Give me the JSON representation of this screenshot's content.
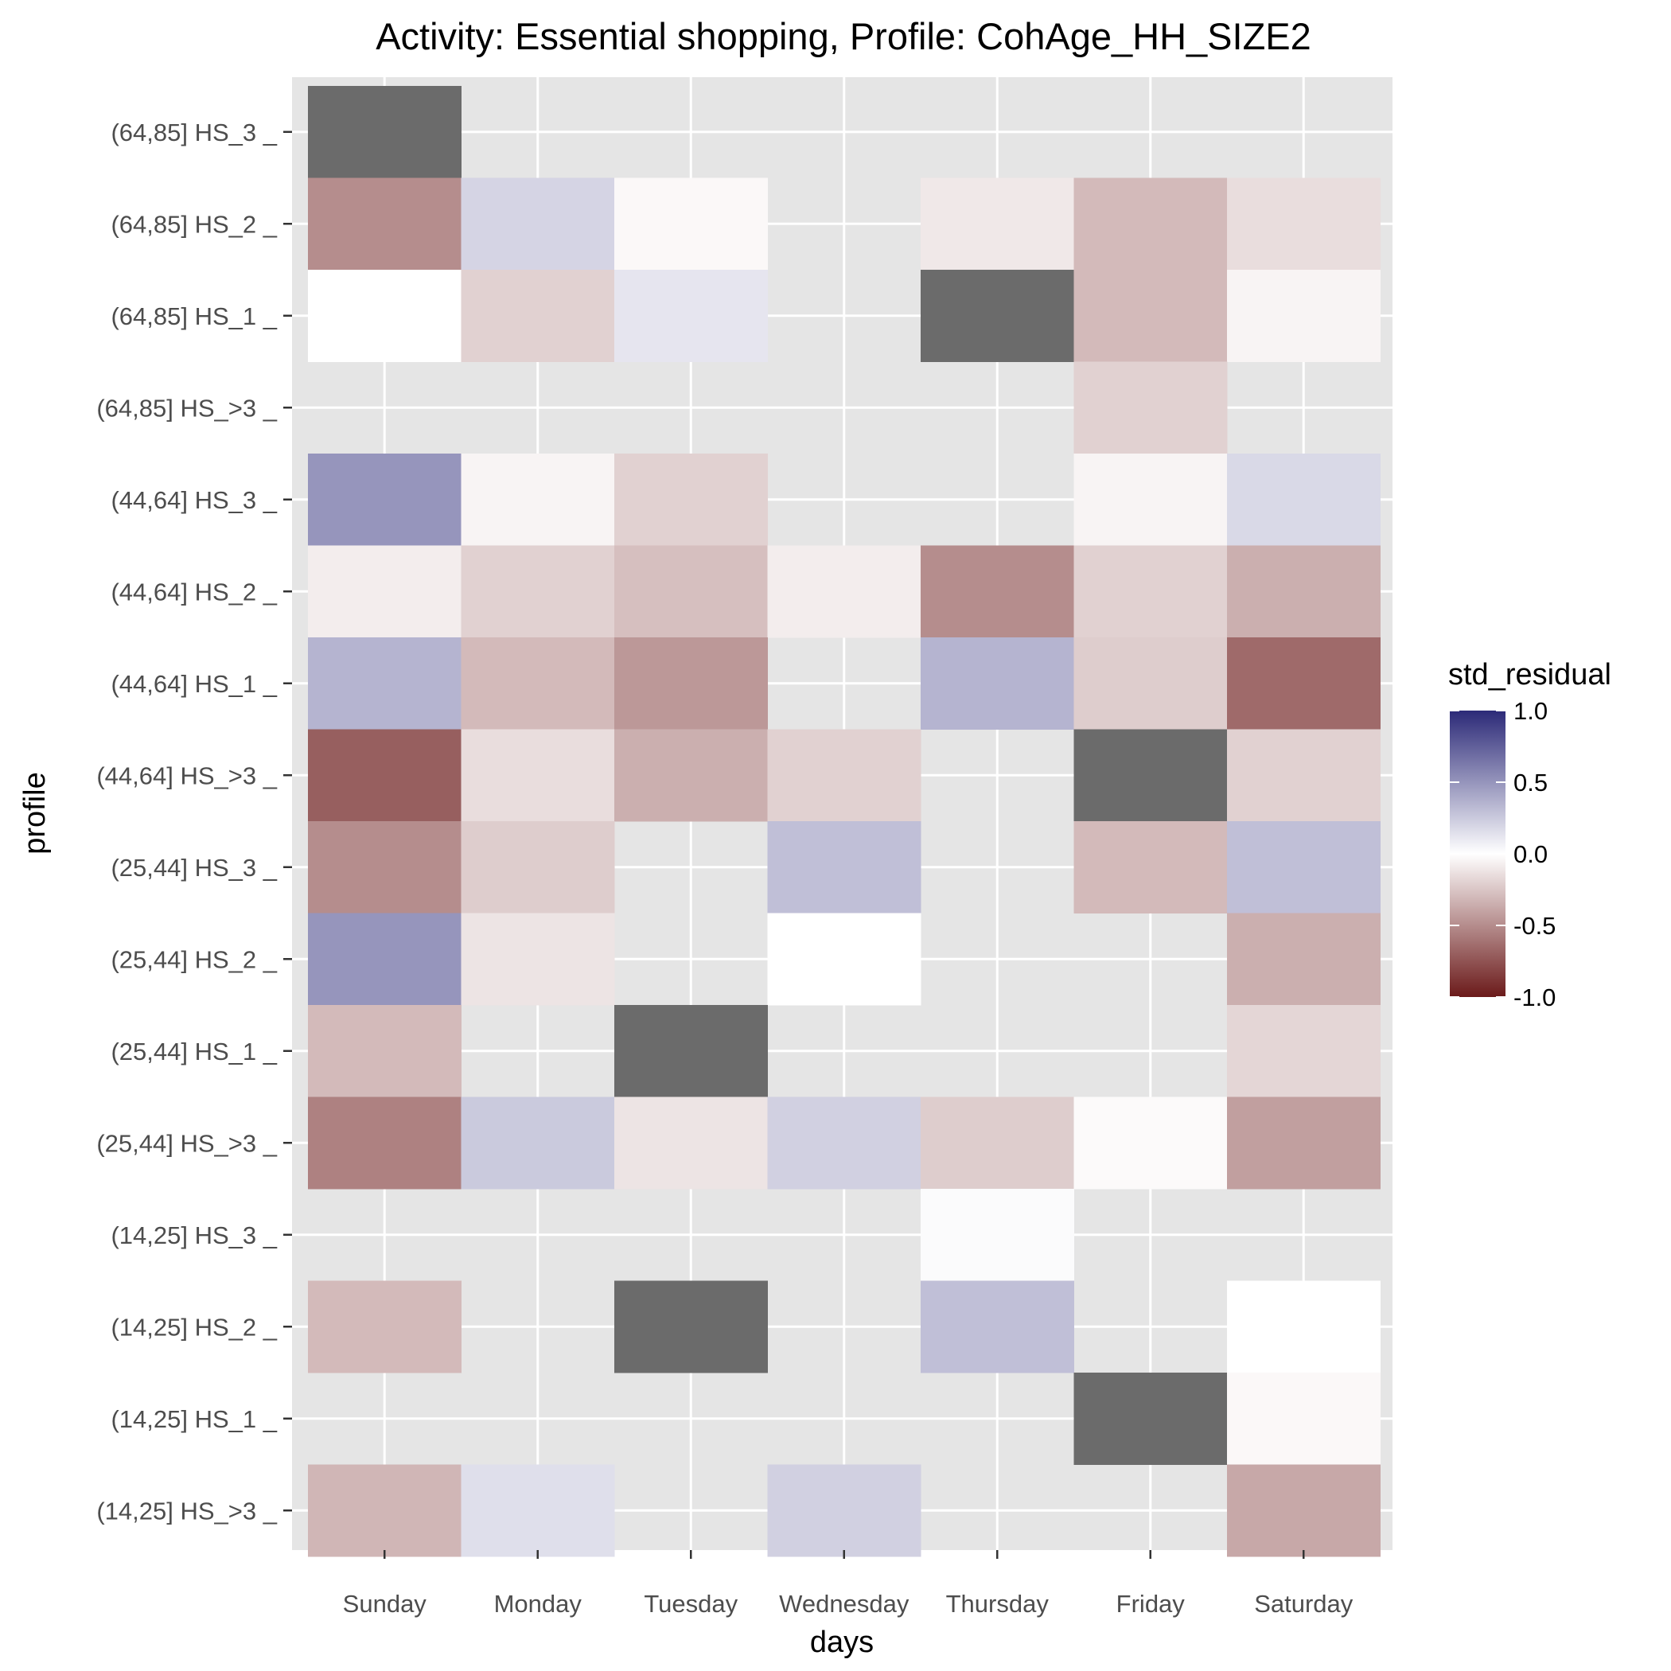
{
  "chart_data": {
    "type": "heatmap",
    "title": "Activity: Essential shopping, Profile: CohAge_HH_SIZE2",
    "xlabel": "days",
    "ylabel": "profile",
    "categories_x": [
      "Sunday",
      "Monday",
      "Tuesday",
      "Wednesday",
      "Thursday",
      "Friday",
      "Saturday"
    ],
    "categories_y": [
      "(64,85] HS_3 _",
      "(64,85] HS_2 _",
      "(64,85] HS_1 _",
      "(64,85] HS_>3 _",
      "(44,64] HS_3 _",
      "(44,64] HS_2 _",
      "(44,64] HS_1 _",
      "(44,64] HS_>3 _",
      "(25,44] HS_3 _",
      "(25,44] HS_2 _",
      "(25,44] HS_1 _",
      "(25,44] HS_>3 _",
      "(14,25] HS_3 _",
      "(14,25] HS_2 _",
      "(14,25] HS_1 _",
      "(14,25] HS_>3 _"
    ],
    "cells": [
      {
        "profile": "(64,85] HS_3 _",
        "day": "Sunday",
        "value": "NA"
      },
      {
        "profile": "(64,85] HS_2 _",
        "day": "Sunday",
        "value": -0.5
      },
      {
        "profile": "(64,85] HS_2 _",
        "day": "Monday",
        "value": 0.2
      },
      {
        "profile": "(64,85] HS_2 _",
        "day": "Tuesday",
        "value": -0.03
      },
      {
        "profile": "(64,85] HS_2 _",
        "day": "Thursday",
        "value": -0.1
      },
      {
        "profile": "(64,85] HS_2 _",
        "day": "Friday",
        "value": -0.3
      },
      {
        "profile": "(64,85] HS_2 _",
        "day": "Saturday",
        "value": -0.15
      },
      {
        "profile": "(64,85] HS_1 _",
        "day": "Sunday",
        "value": 0.0
      },
      {
        "profile": "(64,85] HS_1 _",
        "day": "Monday",
        "value": -0.2
      },
      {
        "profile": "(64,85] HS_1 _",
        "day": "Tuesday",
        "value": 0.12
      },
      {
        "profile": "(64,85] HS_1 _",
        "day": "Thursday",
        "value": "NA"
      },
      {
        "profile": "(64,85] HS_1 _",
        "day": "Friday",
        "value": -0.3
      },
      {
        "profile": "(64,85] HS_1 _",
        "day": "Saturday",
        "value": -0.05
      },
      {
        "profile": "(64,85] HS_>3 _",
        "day": "Friday",
        "value": -0.2
      },
      {
        "profile": "(44,64] HS_3 _",
        "day": "Sunday",
        "value": 0.5
      },
      {
        "profile": "(44,64] HS_3 _",
        "day": "Monday",
        "value": -0.05
      },
      {
        "profile": "(44,64] HS_3 _",
        "day": "Tuesday",
        "value": -0.2
      },
      {
        "profile": "(44,64] HS_3 _",
        "day": "Friday",
        "value": -0.05
      },
      {
        "profile": "(44,64] HS_3 _",
        "day": "Saturday",
        "value": 0.18
      },
      {
        "profile": "(44,64] HS_2 _",
        "day": "Sunday",
        "value": -0.08
      },
      {
        "profile": "(44,64] HS_2 _",
        "day": "Monday",
        "value": -0.2
      },
      {
        "profile": "(44,64] HS_2 _",
        "day": "Tuesday",
        "value": -0.28
      },
      {
        "profile": "(44,64] HS_2 _",
        "day": "Wednesday",
        "value": -0.08
      },
      {
        "profile": "(44,64] HS_2 _",
        "day": "Thursday",
        "value": -0.5
      },
      {
        "profile": "(44,64] HS_2 _",
        "day": "Friday",
        "value": -0.2
      },
      {
        "profile": "(44,64] HS_2 _",
        "day": "Saturday",
        "value": -0.35
      },
      {
        "profile": "(44,64] HS_1 _",
        "day": "Sunday",
        "value": 0.35
      },
      {
        "profile": "(44,64] HS_1 _",
        "day": "Monday",
        "value": -0.3
      },
      {
        "profile": "(44,64] HS_1 _",
        "day": "Tuesday",
        "value": -0.45
      },
      {
        "profile": "(44,64] HS_1 _",
        "day": "Thursday",
        "value": 0.35
      },
      {
        "profile": "(44,64] HS_1 _",
        "day": "Friday",
        "value": -0.22
      },
      {
        "profile": "(44,64] HS_1 _",
        "day": "Saturday",
        "value": -0.65
      },
      {
        "profile": "(44,64] HS_>3 _",
        "day": "Sunday",
        "value": -0.7
      },
      {
        "profile": "(44,64] HS_>3 _",
        "day": "Monday",
        "value": -0.15
      },
      {
        "profile": "(44,64] HS_>3 _",
        "day": "Tuesday",
        "value": -0.35
      },
      {
        "profile": "(44,64] HS_>3 _",
        "day": "Wednesday",
        "value": -0.2
      },
      {
        "profile": "(44,64] HS_>3 _",
        "day": "Friday",
        "value": "NA"
      },
      {
        "profile": "(44,64] HS_>3 _",
        "day": "Saturday",
        "value": -0.2
      },
      {
        "profile": "(25,44] HS_3 _",
        "day": "Sunday",
        "value": -0.5
      },
      {
        "profile": "(25,44] HS_3 _",
        "day": "Monday",
        "value": -0.22
      },
      {
        "profile": "(25,44] HS_3 _",
        "day": "Wednesday",
        "value": 0.3
      },
      {
        "profile": "(25,44] HS_3 _",
        "day": "Friday",
        "value": -0.3
      },
      {
        "profile": "(25,44] HS_3 _",
        "day": "Saturday",
        "value": 0.3
      },
      {
        "profile": "(25,44] HS_2 _",
        "day": "Sunday",
        "value": 0.5
      },
      {
        "profile": "(25,44] HS_2 _",
        "day": "Monday",
        "value": -0.12
      },
      {
        "profile": "(25,44] HS_2 _",
        "day": "Wednesday",
        "value": 0.0
      },
      {
        "profile": "(25,44] HS_2 _",
        "day": "Saturday",
        "value": -0.35
      },
      {
        "profile": "(25,44] HS_1 _",
        "day": "Sunday",
        "value": -0.3
      },
      {
        "profile": "(25,44] HS_1 _",
        "day": "Tuesday",
        "value": "NA"
      },
      {
        "profile": "(25,44] HS_1 _",
        "day": "Saturday",
        "value": -0.18
      },
      {
        "profile": "(25,44] HS_>3 _",
        "day": "Sunday",
        "value": -0.55
      },
      {
        "profile": "(25,44] HS_>3 _",
        "day": "Monday",
        "value": 0.25
      },
      {
        "profile": "(25,44] HS_>3 _",
        "day": "Tuesday",
        "value": -0.12
      },
      {
        "profile": "(25,44] HS_>3 _",
        "day": "Wednesday",
        "value": 0.22
      },
      {
        "profile": "(25,44] HS_>3 _",
        "day": "Thursday",
        "value": -0.22
      },
      {
        "profile": "(25,44] HS_>3 _",
        "day": "Friday",
        "value": -0.02
      },
      {
        "profile": "(25,44] HS_>3 _",
        "day": "Saturday",
        "value": -0.42
      },
      {
        "profile": "(14,25] HS_3 _",
        "day": "Thursday",
        "value": 0.02
      },
      {
        "profile": "(14,25] HS_2 _",
        "day": "Sunday",
        "value": -0.3
      },
      {
        "profile": "(14,25] HS_2 _",
        "day": "Tuesday",
        "value": "NA"
      },
      {
        "profile": "(14,25] HS_2 _",
        "day": "Thursday",
        "value": 0.3
      },
      {
        "profile": "(14,25] HS_2 _",
        "day": "Saturday",
        "value": 0.0
      },
      {
        "profile": "(14,25] HS_1 _",
        "day": "Friday",
        "value": "NA"
      },
      {
        "profile": "(14,25] HS_1 _",
        "day": "Saturday",
        "value": -0.03
      },
      {
        "profile": "(14,25] HS_>3 _",
        "day": "Sunday",
        "value": -0.32
      },
      {
        "profile": "(14,25] HS_>3 _",
        "day": "Monday",
        "value": 0.15
      },
      {
        "profile": "(14,25] HS_>3 _",
        "day": "Wednesday",
        "value": 0.22
      },
      {
        "profile": "(14,25] HS_>3 _",
        "day": "Saturday",
        "value": -0.38
      }
    ],
    "legend": {
      "title": "std_residual",
      "range": [
        -1.0,
        1.0
      ],
      "ticks": [
        "1.0",
        "0.5",
        "0.0",
        "-0.5",
        "-1.0"
      ],
      "tick_values": [
        1.0,
        0.5,
        0.0,
        -0.5,
        -1.0
      ],
      "low_color": "#6b1a1a",
      "mid_color": "#ffffff",
      "high_color": "#2c2a78",
      "na_color": "#6b6b6b",
      "placement": "right"
    },
    "panel_background": "#e5e5e5",
    "grid": true,
    "grid_color": "#ffffff"
  }
}
